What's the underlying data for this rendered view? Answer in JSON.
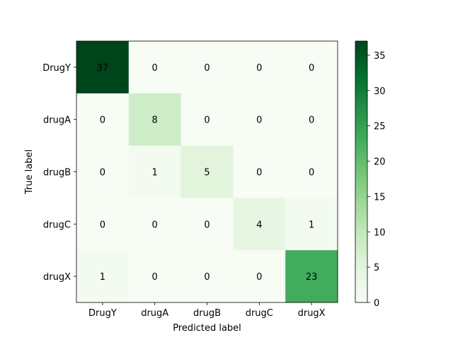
{
  "chart_data": {
    "type": "heatmap",
    "title": "",
    "xlabel": "Predicted label",
    "ylabel": "True label",
    "x_categories": [
      "DrugY",
      "drugA",
      "drugB",
      "drugC",
      "drugX"
    ],
    "y_categories": [
      "DrugY",
      "drugA",
      "drugB",
      "drugC",
      "drugX"
    ],
    "matrix": [
      [
        37,
        0,
        0,
        0,
        0
      ],
      [
        0,
        8,
        0,
        0,
        0
      ],
      [
        0,
        1,
        5,
        0,
        0
      ],
      [
        0,
        0,
        0,
        4,
        1
      ],
      [
        1,
        0,
        0,
        0,
        23
      ]
    ],
    "colormap": "Greens",
    "colorbar": {
      "range": [
        0,
        37
      ],
      "ticks": [
        0,
        5,
        10,
        15,
        20,
        25,
        30,
        35
      ]
    },
    "grid": false,
    "legend": "colorbar-right"
  }
}
